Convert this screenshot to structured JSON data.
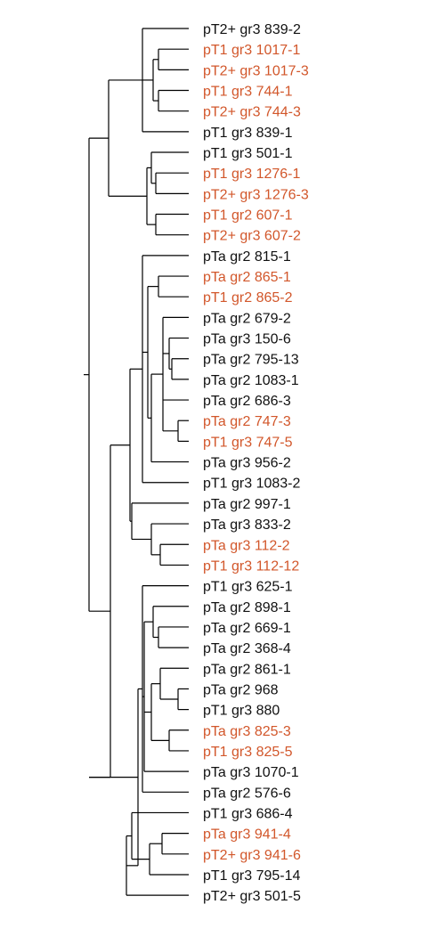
{
  "colors": {
    "branch": "#000000",
    "normal": "#111111",
    "highlight": "#d2572b"
  },
  "leaves": [
    {
      "label": "pT2+ gr3 839-2",
      "highlight": false
    },
    {
      "label": "pT1 gr3 1017-1",
      "highlight": true
    },
    {
      "label": "pT2+ gr3 1017-3",
      "highlight": true
    },
    {
      "label": "pT1 gr3 744-1",
      "highlight": true
    },
    {
      "label": "pT2+ gr3 744-3",
      "highlight": true
    },
    {
      "label": "pT1 gr3 839-1",
      "highlight": false
    },
    {
      "label": "pT1 gr3 501-1",
      "highlight": false
    },
    {
      "label": "pT1 gr3 1276-1",
      "highlight": true
    },
    {
      "label": "pT2+ gr3 1276-3",
      "highlight": true
    },
    {
      "label": "pT1 gr2 607-1",
      "highlight": true
    },
    {
      "label": "pT2+ gr3 607-2",
      "highlight": true
    },
    {
      "label": "pTa gr2 815-1",
      "highlight": false
    },
    {
      "label": "pTa gr2 865-1",
      "highlight": true
    },
    {
      "label": "pT1 gr2 865-2",
      "highlight": true
    },
    {
      "label": "pTa gr2 679-2",
      "highlight": false
    },
    {
      "label": "pTa gr3 150-6",
      "highlight": false
    },
    {
      "label": "pTa gr2 795-13",
      "highlight": false
    },
    {
      "label": "pTa gr2 1083-1",
      "highlight": false
    },
    {
      "label": "pTa gr2 686-3",
      "highlight": false
    },
    {
      "label": "pTa gr2 747-3",
      "highlight": true
    },
    {
      "label": "pT1 gr3 747-5",
      "highlight": true
    },
    {
      "label": "pTa gr3 956-2",
      "highlight": false
    },
    {
      "label": "pT1 gr3 1083-2",
      "highlight": false
    },
    {
      "label": "pTa gr2 997-1",
      "highlight": false
    },
    {
      "label": "pTa gr3 833-2",
      "highlight": false
    },
    {
      "label": "pTa gr3 112-2",
      "highlight": true
    },
    {
      "label": "pT1 gr3 112-12",
      "highlight": true
    },
    {
      "label": "pT1 gr3 625-1",
      "highlight": false
    },
    {
      "label": "pTa gr2 898-1",
      "highlight": false
    },
    {
      "label": "pTa gr2 669-1",
      "highlight": false
    },
    {
      "label": "pTa gr2 368-4",
      "highlight": false
    },
    {
      "label": "pTa gr2 861-1",
      "highlight": false
    },
    {
      "label": "pTa gr2 968",
      "highlight": false
    },
    {
      "label": "pT1 gr3 880",
      "highlight": false
    },
    {
      "label": "pTa gr3 825-3",
      "highlight": true
    },
    {
      "label": "pT1 gr3 825-5",
      "highlight": true
    },
    {
      "label": "pTa gr3 1070-1",
      "highlight": false
    },
    {
      "label": "pTa gr2 576-6",
      "highlight": false
    },
    {
      "label": "pT1 gr3 686-4",
      "highlight": false
    },
    {
      "label": "pTa gr3 941-4",
      "highlight": true
    },
    {
      "label": "pT2+ gr3 941-6",
      "highlight": true
    },
    {
      "label": "pT1 gr3 795-14",
      "highlight": false
    },
    {
      "label": "pT2+ gr3 501-5",
      "highlight": false
    }
  ]
}
